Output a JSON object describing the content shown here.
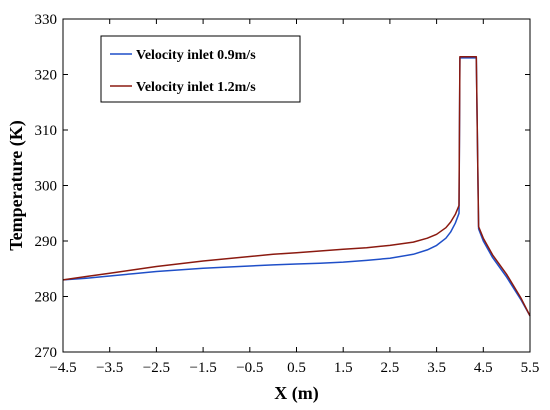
{
  "chart_data": {
    "type": "line",
    "title": "",
    "xlabel": "X (m)",
    "ylabel": "Temperature (K)",
    "xlim": [
      -4.5,
      5.5
    ],
    "ylim": [
      270,
      330
    ],
    "xticks": [
      -4.5,
      -3.5,
      -2.5,
      -1.5,
      -0.5,
      0.5,
      1.5,
      2.5,
      3.5,
      4.5,
      5.5
    ],
    "xtick_labels": [
      "−4.5",
      "−3.5",
      "−2.5",
      "−1.5",
      "−0.5",
      "0.5",
      "1.5",
      "2.5",
      "3.5",
      "4.5",
      "5.5"
    ],
    "yticks": [
      270,
      280,
      290,
      300,
      310,
      320,
      330
    ],
    "ytick_labels": [
      "270",
      "280",
      "290",
      "300",
      "310",
      "320",
      "330"
    ],
    "grid": false,
    "legend_position": "top-left",
    "series": [
      {
        "name": "Velocity inlet 0.9m/s",
        "color": "#1f4fc8",
        "x": [
          -4.5,
          -4.0,
          -3.5,
          -3.0,
          -2.5,
          -2.0,
          -1.5,
          -1.0,
          -0.5,
          0.0,
          0.5,
          1.0,
          1.5,
          2.0,
          2.5,
          3.0,
          3.3,
          3.5,
          3.7,
          3.8,
          3.9,
          3.98,
          4.0,
          4.05,
          4.1,
          4.2,
          4.3,
          4.35,
          4.4,
          4.5,
          4.7,
          5.0,
          5.3,
          5.5
        ],
        "y": [
          283.0,
          283.3,
          283.7,
          284.1,
          284.5,
          284.8,
          285.1,
          285.3,
          285.5,
          285.7,
          285.85,
          286.0,
          286.2,
          286.5,
          286.9,
          287.6,
          288.4,
          289.2,
          290.5,
          291.6,
          293.2,
          295.0,
          323.0,
          323.0,
          323.0,
          323.0,
          323.0,
          323.0,
          292.2,
          290.0,
          287.0,
          283.5,
          279.5,
          276.5
        ]
      },
      {
        "name": "Velocity inlet 1.2m/s",
        "color": "#8b1a10",
        "x": [
          -4.5,
          -4.0,
          -3.5,
          -3.0,
          -2.5,
          -2.0,
          -1.5,
          -1.0,
          -0.5,
          0.0,
          0.5,
          1.0,
          1.5,
          2.0,
          2.5,
          3.0,
          3.3,
          3.5,
          3.7,
          3.8,
          3.9,
          3.98,
          4.0,
          4.05,
          4.1,
          4.2,
          4.3,
          4.35,
          4.4,
          4.5,
          4.7,
          5.0,
          5.3,
          5.5
        ],
        "y": [
          283.0,
          283.6,
          284.2,
          284.8,
          285.4,
          285.9,
          286.4,
          286.8,
          287.2,
          287.6,
          287.9,
          288.2,
          288.5,
          288.8,
          289.2,
          289.8,
          290.5,
          291.2,
          292.4,
          293.4,
          294.8,
          296.4,
          323.2,
          323.2,
          323.2,
          323.2,
          323.2,
          323.2,
          292.6,
          290.5,
          287.5,
          284.0,
          279.8,
          276.5
        ]
      }
    ]
  }
}
